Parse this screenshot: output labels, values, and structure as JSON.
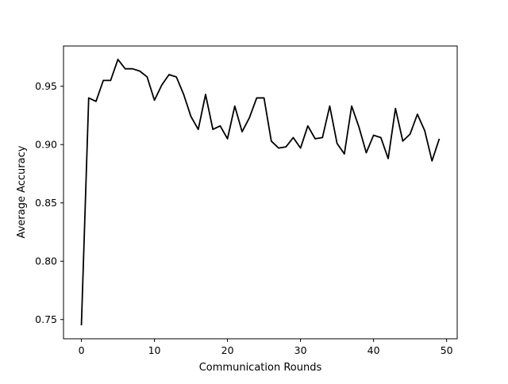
{
  "chart_data": {
    "type": "line",
    "title": "",
    "xlabel": "Communication Rounds",
    "ylabel": "Average Accuracy",
    "xlim": [
      -2.45,
      51.45
    ],
    "ylim": [
      0.7335,
      0.9845
    ],
    "xticks": [
      0,
      10,
      20,
      30,
      40,
      50
    ],
    "yticks": [
      0.75,
      0.8,
      0.85,
      0.9,
      0.95
    ],
    "xtick_labels": [
      "0",
      "10",
      "20",
      "30",
      "40",
      "50"
    ],
    "ytick_labels": [
      "0.75",
      "0.80",
      "0.85",
      "0.90",
      "0.95"
    ],
    "grid": false,
    "legend": "none",
    "line_color": "#000000",
    "series": [
      {
        "x": [
          0,
          1,
          2,
          3,
          4,
          5,
          6,
          7,
          8,
          9,
          10,
          11,
          12,
          13,
          14,
          15,
          16,
          17,
          18,
          19,
          20,
          21,
          22,
          23,
          24,
          25,
          26,
          27,
          28,
          29,
          30,
          31,
          32,
          33,
          34,
          35,
          36,
          37,
          38,
          39,
          40,
          41,
          42,
          43,
          44,
          45,
          46,
          47,
          48,
          49
        ],
        "values": [
          0.745,
          0.94,
          0.937,
          0.955,
          0.955,
          0.973,
          0.965,
          0.965,
          0.963,
          0.958,
          0.938,
          0.951,
          0.96,
          0.958,
          0.943,
          0.924,
          0.913,
          0.943,
          0.913,
          0.916,
          0.905,
          0.933,
          0.911,
          0.923,
          0.94,
          0.94,
          0.903,
          0.897,
          0.898,
          0.906,
          0.897,
          0.916,
          0.905,
          0.906,
          0.933,
          0.901,
          0.892,
          0.933,
          0.915,
          0.893,
          0.908,
          0.906,
          0.888,
          0.931,
          0.903,
          0.909,
          0.926,
          0.912,
          0.886,
          0.905
        ]
      }
    ]
  }
}
